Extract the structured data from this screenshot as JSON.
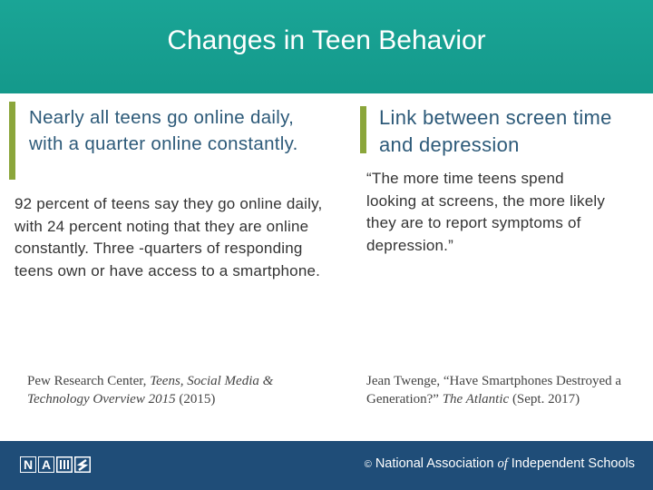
{
  "header": {
    "title": "Changes in Teen Behavior"
  },
  "left": {
    "heading": "Nearly all teens go online daily, with a quarter online constantly.",
    "body": "92 percent of teens say they go online daily, with 24 percent noting that they are online constantly. Three -quarters of responding teens own or have access to a smartphone.",
    "citation": [
      "Pew Research Center, ",
      "Teens, Social Media & Technology Overview 2015",
      " (2015)"
    ]
  },
  "right": {
    "heading": "Link between screen time and depression",
    "quote": "“The more time teens spend looking at screens, the more likely they are to report symptoms of depression.”",
    "citation": [
      "Jean Twenge, “Have Smartphones Destroyed a Generation?” ",
      "The Atlantic",
      " (Sept. 2017)"
    ]
  },
  "footer": {
    "logo": [
      "N",
      "A"
    ],
    "org": [
      "©",
      "National Association ",
      "of",
      " Independent Schools"
    ]
  }
}
